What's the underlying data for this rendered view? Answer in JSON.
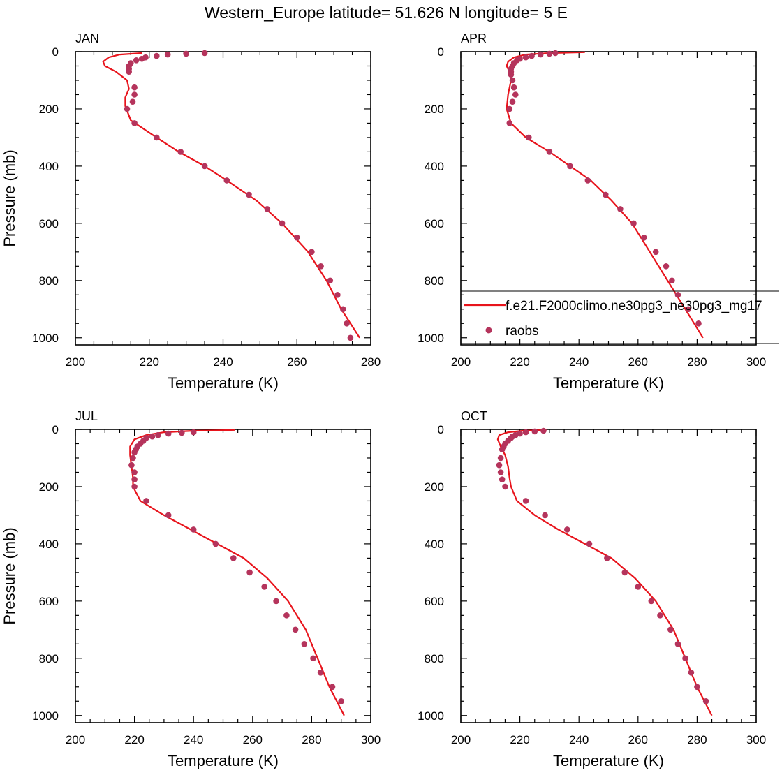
{
  "figure_title": "Western_Europe  latitude= 51.626 N longitude= 5 E",
  "legend": {
    "model_label": "f.e21.F2000climo.ne30pg3_ne30pg3_mg17",
    "obs_label": "raobs"
  },
  "colors": {
    "model": "#e8141c",
    "obs": "#b5345c",
    "axis": "#000000"
  },
  "chart_data": [
    {
      "type": "line",
      "title": "JAN",
      "xlabel": "Temperature (K)",
      "ylabel": "Pressure (mb)",
      "xlim": [
        200,
        280
      ],
      "ylim": [
        1025,
        0
      ],
      "xticks": [
        200,
        220,
        240,
        260,
        280
      ],
      "yticks": [
        0,
        200,
        400,
        600,
        800,
        1000
      ],
      "series": [
        {
          "kind": "line",
          "x": [
            218,
            212,
            209,
            207.5,
            208,
            211,
            214,
            214.5,
            213.5,
            213.5,
            215,
            222,
            228,
            235,
            241,
            249,
            256,
            263,
            268,
            272,
            275,
            277
          ],
          "y": [
            5,
            10,
            20,
            35,
            50,
            70,
            100,
            130,
            160,
            190,
            240,
            300,
            350,
            400,
            450,
            520,
            600,
            700,
            800,
            900,
            960,
            1000
          ]
        },
        {
          "kind": "scatter",
          "x": [
            235,
            230,
            225,
            222,
            219,
            218,
            216.5,
            215,
            214.5,
            214.5,
            214.5,
            216,
            216,
            215.5,
            214,
            216,
            222,
            228.5,
            235,
            241,
            247,
            252,
            256,
            260,
            264,
            266.5,
            269,
            271,
            272.5,
            273.5,
            274.5
          ],
          "y": [
            5,
            7,
            10,
            15,
            20,
            25,
            30,
            40,
            50,
            60,
            70,
            125,
            150,
            175,
            200,
            250,
            300,
            350,
            400,
            450,
            500,
            550,
            600,
            650,
            700,
            750,
            800,
            850,
            900,
            950,
            1000
          ]
        }
      ]
    },
    {
      "type": "line",
      "title": "APR",
      "xlabel": "Temperature (K)",
      "ylabel": "",
      "xlim": [
        200,
        300
      ],
      "ylim": [
        1025,
        0
      ],
      "xticks": [
        200,
        220,
        240,
        260,
        280,
        300
      ],
      "yticks": [
        0,
        200,
        400,
        600,
        800,
        1000
      ],
      "series": [
        {
          "kind": "line",
          "x": [
            242,
            230,
            222,
            218,
            216,
            215.5,
            216.5,
            217,
            216,
            215.5,
            217,
            222,
            230,
            237,
            244,
            251,
            258,
            264,
            270,
            276,
            282
          ],
          "y": [
            2,
            5,
            10,
            20,
            35,
            50,
            70,
            100,
            150,
            200,
            250,
            300,
            350,
            400,
            450,
            520,
            600,
            700,
            800,
            900,
            1000
          ]
        },
        {
          "kind": "scatter",
          "x": [
            232,
            230,
            227,
            224,
            222,
            220,
            219,
            218,
            217.5,
            217,
            217,
            217,
            217.5,
            218,
            218.5,
            217.5,
            216.5,
            216.5,
            223,
            230,
            237,
            243,
            249,
            254,
            258.5,
            262,
            266,
            269.5,
            271.5,
            273.5,
            277,
            280.5
          ],
          "y": [
            5,
            7,
            10,
            15,
            20,
            25,
            30,
            40,
            50,
            60,
            70,
            80,
            100,
            125,
            150,
            175,
            200,
            250,
            300,
            350,
            400,
            450,
            500,
            550,
            600,
            650,
            700,
            750,
            800,
            850,
            900,
            950
          ]
        }
      ]
    },
    {
      "type": "line",
      "title": "JUL",
      "xlabel": "Temperature (K)",
      "ylabel": "Pressure (mb)",
      "xlim": [
        200,
        300
      ],
      "ylim": [
        1025,
        0
      ],
      "xticks": [
        200,
        220,
        240,
        260,
        280,
        300
      ],
      "yticks": [
        0,
        200,
        400,
        600,
        800,
        1000
      ],
      "series": [
        {
          "kind": "line",
          "x": [
            254,
            240,
            230,
            224,
            220,
            218.5,
            218.5,
            219,
            219.5,
            219.5,
            222,
            230,
            239,
            248,
            257,
            265,
            272,
            278,
            282,
            286,
            291
          ],
          "y": [
            2,
            5,
            10,
            20,
            35,
            60,
            90,
            130,
            170,
            200,
            250,
            300,
            350,
            400,
            450,
            520,
            600,
            700,
            800,
            900,
            1000
          ]
        },
        {
          "kind": "scatter",
          "x": [
            240,
            236,
            231.5,
            228,
            226,
            224,
            223,
            222,
            221,
            220.5,
            220,
            219.5,
            219,
            220,
            220,
            220,
            224,
            231.5,
            240,
            247.5,
            253.5,
            259,
            264,
            268,
            271.5,
            274.5,
            277.5,
            280.5,
            283,
            287,
            290
          ],
          "y": [
            10,
            12,
            15,
            20,
            25,
            30,
            40,
            50,
            60,
            70,
            80,
            100,
            125,
            150,
            175,
            200,
            250,
            300,
            350,
            400,
            450,
            500,
            550,
            600,
            650,
            700,
            750,
            800,
            850,
            900,
            950
          ]
        }
      ]
    },
    {
      "type": "line",
      "title": "OCT",
      "xlabel": "Temperature (K)",
      "ylabel": "",
      "xlim": [
        200,
        300
      ],
      "ylim": [
        1025,
        0
      ],
      "xticks": [
        200,
        220,
        240,
        260,
        280,
        300
      ],
      "yticks": [
        0,
        200,
        400,
        600,
        800,
        1000
      ],
      "series": [
        {
          "kind": "line",
          "x": [
            229,
            221,
            216,
            213,
            212.5,
            213.5,
            215,
            216,
            216.5,
            217,
            219,
            225,
            233,
            242,
            251,
            259,
            266,
            272,
            276,
            280,
            285
          ],
          "y": [
            2,
            5,
            10,
            20,
            35,
            60,
            90,
            130,
            170,
            200,
            250,
            300,
            350,
            400,
            450,
            520,
            600,
            700,
            800,
            900,
            1000
          ]
        },
        {
          "kind": "scatter",
          "x": [
            228,
            225,
            222,
            220,
            218.5,
            217.5,
            217,
            216,
            215,
            214.5,
            214,
            213.5,
            213,
            213.5,
            214,
            215,
            222,
            228.5,
            236,
            243.5,
            249.5,
            255.5,
            260,
            264.5,
            267.5,
            271,
            273.5,
            276,
            278,
            280,
            283
          ],
          "y": [
            5,
            7,
            10,
            15,
            20,
            25,
            30,
            40,
            50,
            60,
            70,
            100,
            125,
            150,
            175,
            200,
            250,
            300,
            350,
            400,
            450,
            500,
            550,
            600,
            650,
            700,
            750,
            800,
            850,
            900,
            950
          ]
        }
      ]
    }
  ]
}
